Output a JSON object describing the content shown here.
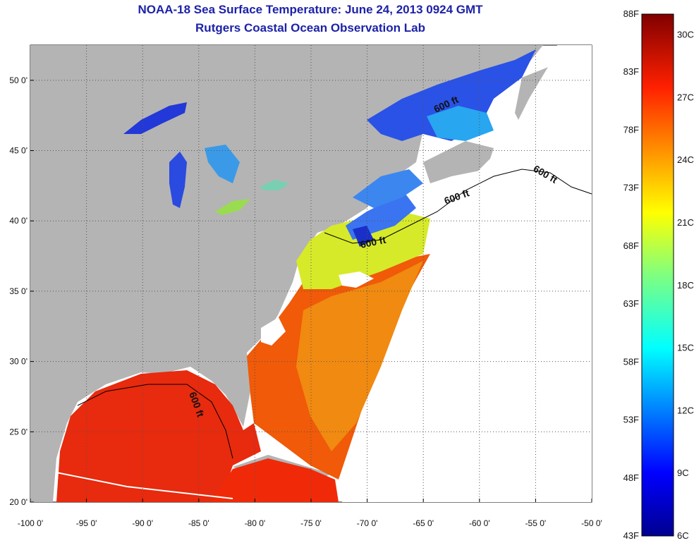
{
  "title": "NOAA-18 Sea Surface Temperature:  June 24, 2013 0924 GMT",
  "subtitle": "Rutgers Coastal Ocean Observation Lab",
  "x_ticks": [
    "-100 0'",
    "-95 0'",
    "-90 0'",
    "-85 0'",
    "-80 0'",
    "-75 0'",
    "-70 0'",
    "-65 0'",
    "-60 0'",
    "-55 0'",
    "-50 0'"
  ],
  "y_ticks": [
    "50 0'",
    "45 0'",
    "40 0'",
    "35 0'",
    "30 0'",
    "25 0'",
    "20 0'"
  ],
  "x_range_lon": [
    -100,
    -50
  ],
  "y_range_lat": [
    20,
    52.5
  ],
  "contour_label": "600 ft",
  "colorbar": {
    "fahrenheit_ticks": [
      "88F",
      "83F",
      "78F",
      "73F",
      "68F",
      "63F",
      "58F",
      "53F",
      "48F",
      "43F"
    ],
    "celsius_ticks": [
      "30C",
      "27C",
      "24C",
      "21C",
      "18C",
      "15C",
      "12C",
      "9C",
      "6C"
    ],
    "range_f": [
      43,
      88
    ],
    "range_c": [
      6,
      31
    ],
    "colormap": "jet"
  },
  "colors": {
    "title": "#1d22a8",
    "land": "#b4b4b4",
    "no_data": "#ffffff",
    "grid": "#555555"
  }
}
